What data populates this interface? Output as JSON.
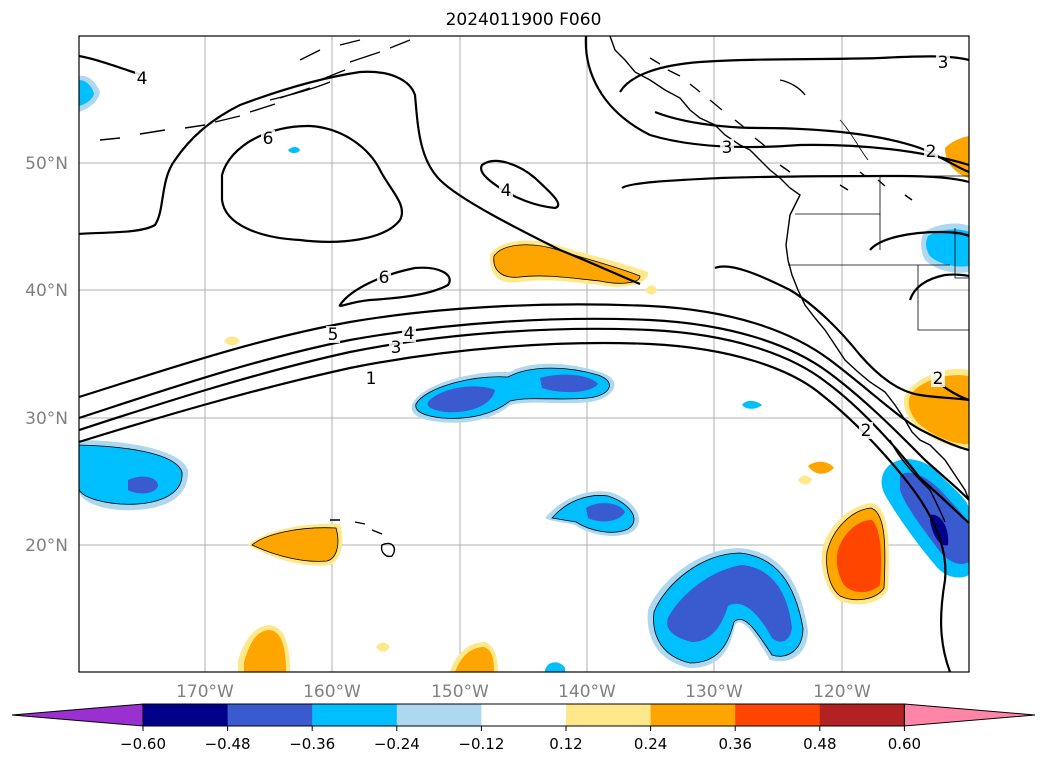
{
  "title": "2024011900 F060",
  "latitudes": [
    "50°N",
    "40°N",
    "30°N",
    "20°N"
  ],
  "longitudes": [
    "170°W",
    "160°W",
    "150°W",
    "140°W",
    "130°W",
    "120°W"
  ],
  "colorbar": {
    "ticks": [
      "−0.60",
      "−0.48",
      "−0.36",
      "−0.24",
      "−0.12",
      "0.12",
      "0.24",
      "0.36",
      "0.48",
      "0.60"
    ],
    "colors": [
      "#9b30d0",
      "#00008b",
      "#3a5bd0",
      "#00bfff",
      "#add8f0",
      "#ffffff",
      "#ffe88a",
      "#ffa500",
      "#ff4500",
      "#b22222",
      "#ff85a8"
    ]
  },
  "contour_labels": [
    "4",
    "6",
    "4",
    "6",
    "5",
    "4",
    "3",
    "1",
    "3",
    "2",
    "3",
    "2",
    "2"
  ]
}
